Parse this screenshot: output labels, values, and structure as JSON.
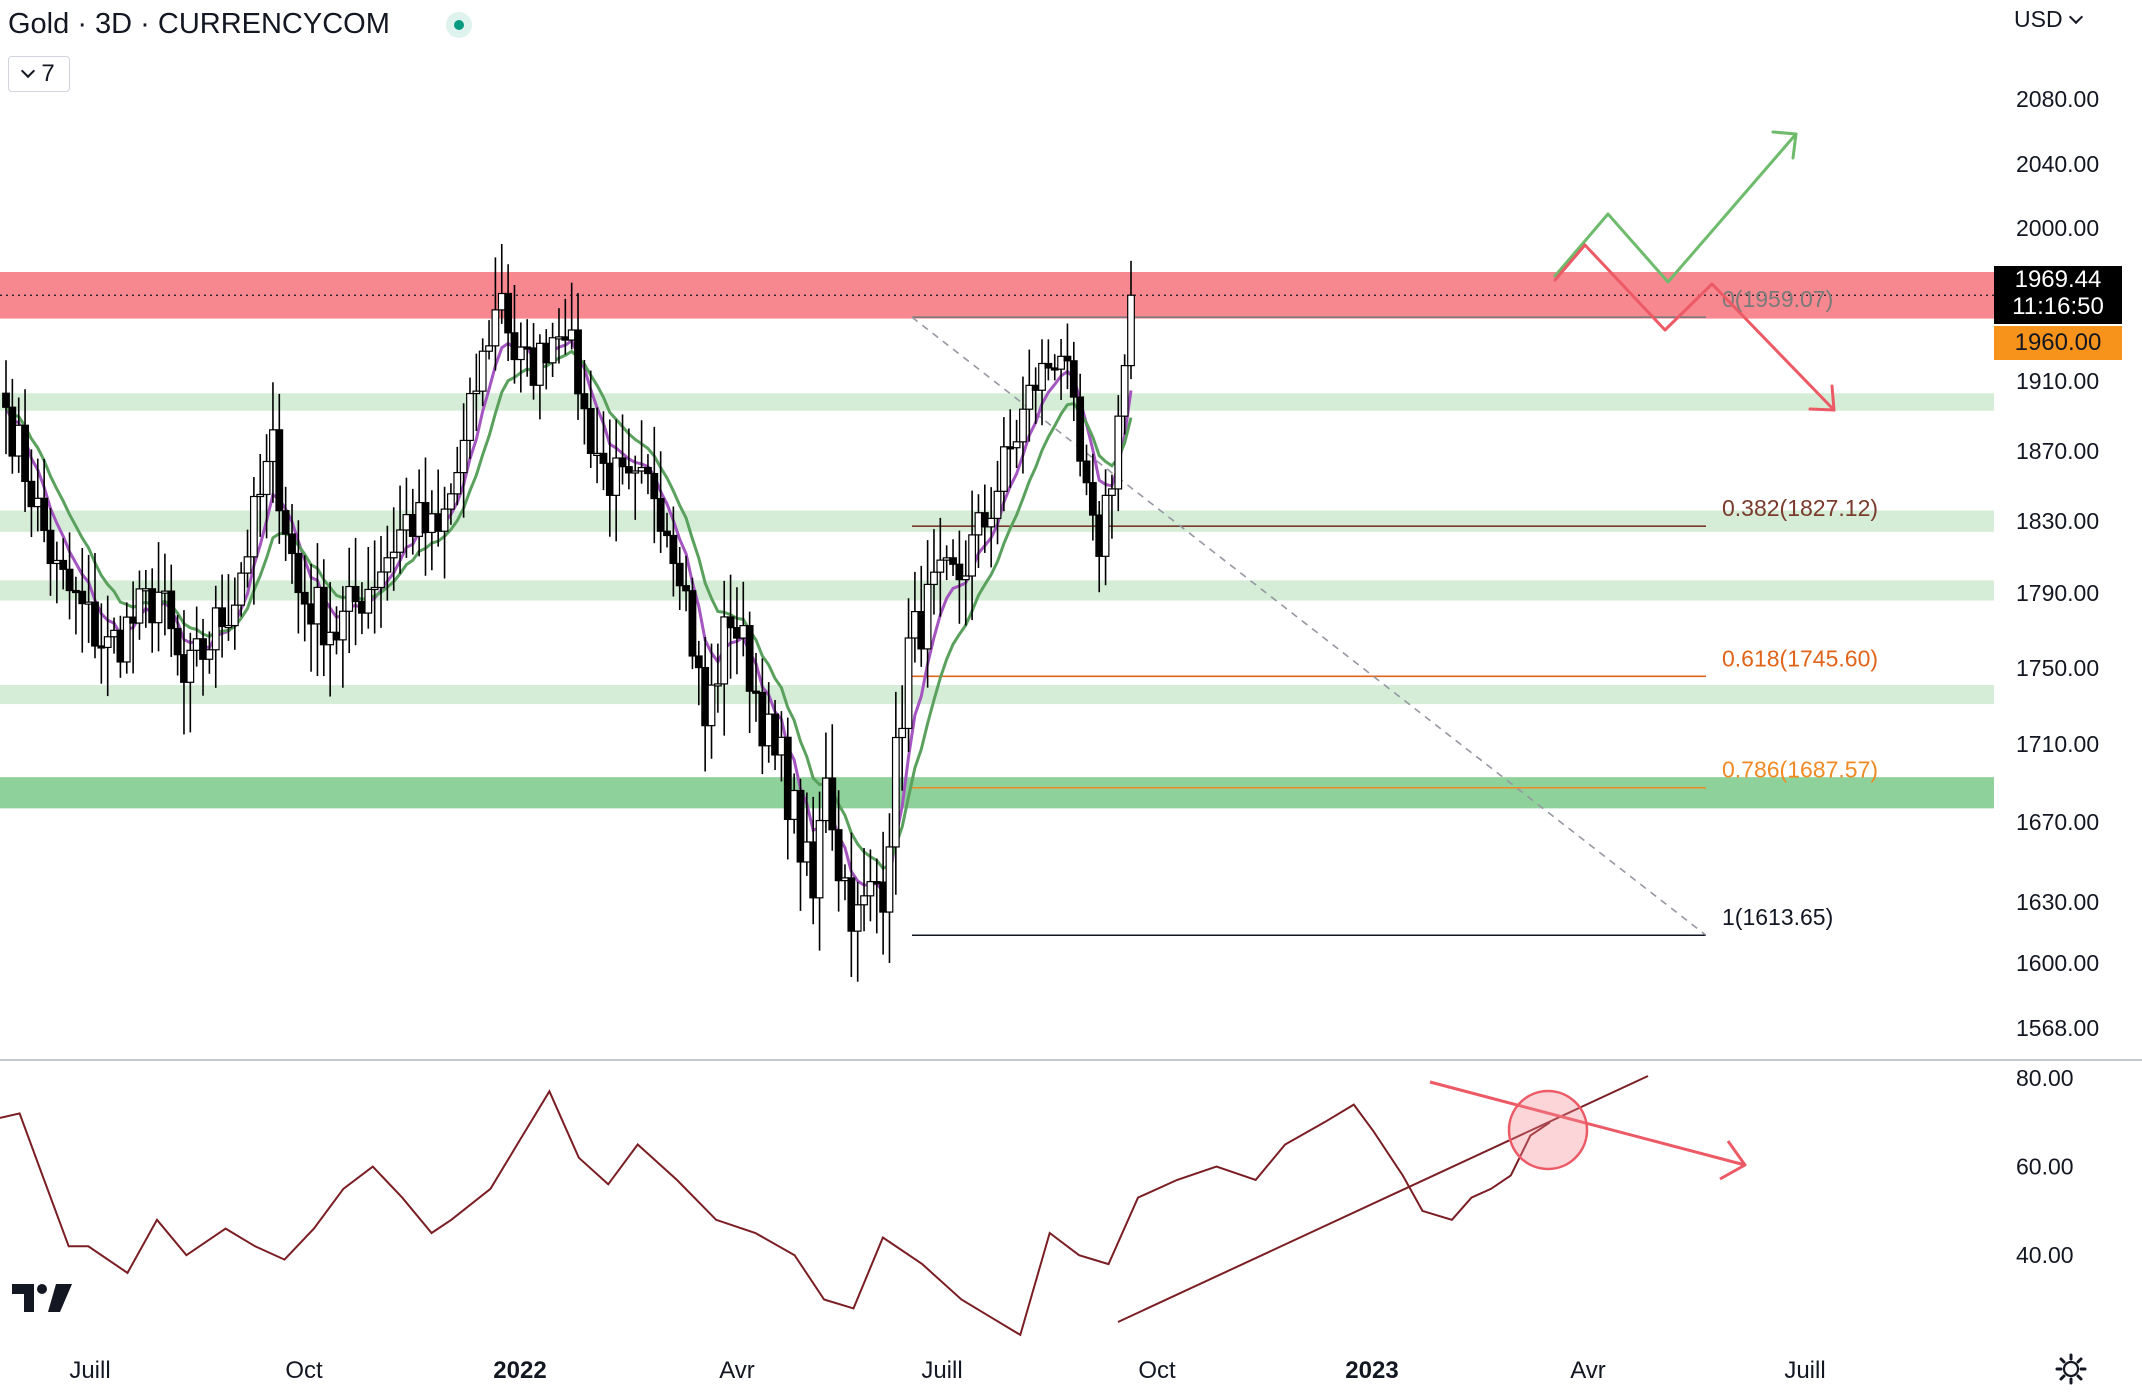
{
  "header": {
    "title": "Gold · 3D · CURRENCYCOM",
    "collapse_label": "7",
    "currency": "USD"
  },
  "price_axis": {
    "ticks": [
      "2080.00",
      "2040.00",
      "2000.00",
      "1910.00",
      "1870.00",
      "1830.00",
      "1790.00",
      "1750.00",
      "1710.00",
      "1670.00",
      "1630.00",
      "1600.00",
      "1568.00"
    ]
  },
  "price_tags": {
    "last_price": "1969.44",
    "countdown": "11:16:50",
    "level": "1960.00"
  },
  "rsi_axis": {
    "ticks": [
      "80.00",
      "60.00",
      "40.00"
    ]
  },
  "time_axis": {
    "labels": [
      {
        "text": "Juill",
        "bold": false
      },
      {
        "text": "Oct",
        "bold": false
      },
      {
        "text": "2022",
        "bold": true
      },
      {
        "text": "Avr",
        "bold": false
      },
      {
        "text": "Juill",
        "bold": false
      },
      {
        "text": "Oct",
        "bold": false
      },
      {
        "text": "2023",
        "bold": true
      },
      {
        "text": "Avr",
        "bold": false
      },
      {
        "text": "Juill",
        "bold": false
      }
    ]
  },
  "fib_labels": {
    "l0": "0(1959.07)",
    "l382": "0.382(1827.12)",
    "l618": "0.618(1745.60)",
    "l786": "0.786(1687.57)",
    "l1": "1(1613.65)"
  },
  "colors": {
    "up": "#ffffff",
    "down": "#000000",
    "wick": "#000000",
    "resistance_zone": "#f7888f",
    "support_zone": "#d5edd6",
    "support_strong": "#8fd19a",
    "ma_fast": "#a455c0",
    "ma_slow": "#5aa15e",
    "rsi": "#7a1e24",
    "bull_arrow": "#6dbb6b",
    "bear_arrow": "#ec5a66",
    "fib0": "#7a7a7a",
    "fib382": "#7a3a2c",
    "fib618": "#e0641a",
    "fib786": "#f08a24",
    "fib1": "#131722"
  },
  "chart_data": {
    "type": "candlestick",
    "timeframe": "3D",
    "x_ticks": [
      "Juill",
      "Oct",
      "2022",
      "Avr",
      "Juill",
      "Oct",
      "2023",
      "Avr",
      "Juill"
    ],
    "y_range": [
      1568,
      2120
    ],
    "rsi_range": [
      20,
      82
    ],
    "zones": [
      {
        "kind": "resistance",
        "from": 1958,
        "to": 1980
      },
      {
        "kind": "support",
        "from": 1893,
        "to": 1903
      },
      {
        "kind": "support",
        "from": 1824,
        "to": 1836
      },
      {
        "kind": "support",
        "from": 1786,
        "to": 1797
      },
      {
        "kind": "support",
        "from": 1731,
        "to": 1741
      },
      {
        "kind": "support_strong",
        "from": 1677,
        "to": 1693
      }
    ],
    "fibonacci": [
      {
        "level": "0",
        "price": 1959.07
      },
      {
        "level": "0.382",
        "price": 1827.12
      },
      {
        "level": "0.618",
        "price": 1745.6
      },
      {
        "level": "0.786",
        "price": 1687.57
      },
      {
        "level": "1",
        "price": 1613.65
      }
    ],
    "segments": [
      {
        "name": "2021-h2",
        "n": 64,
        "keys": [
          [
            0,
            1895
          ],
          [
            8,
            1800
          ],
          [
            16,
            1760
          ],
          [
            24,
            1790
          ],
          [
            28,
            1740
          ],
          [
            36,
            1790
          ],
          [
            42,
            1870
          ],
          [
            46,
            1790
          ],
          [
            52,
            1770
          ],
          [
            58,
            1800
          ],
          [
            63,
            1830
          ]
        ]
      },
      {
        "name": "2022-rally",
        "n": 24,
        "keys": [
          [
            0,
            1830
          ],
          [
            4,
            1820
          ],
          [
            8,
            1870
          ],
          [
            12,
            1945
          ],
          [
            14,
            1975
          ],
          [
            16,
            1930
          ],
          [
            19,
            1920
          ],
          [
            23,
            1955
          ]
        ]
      },
      {
        "name": "2022-drop",
        "n": 34,
        "keys": [
          [
            0,
            1955
          ],
          [
            3,
            1890
          ],
          [
            6,
            1860
          ],
          [
            10,
            1845
          ],
          [
            14,
            1850
          ],
          [
            18,
            1810
          ],
          [
            22,
            1720
          ],
          [
            26,
            1780
          ],
          [
            29,
            1750
          ],
          [
            33,
            1700
          ]
        ]
      },
      {
        "name": "2022-bottom",
        "n": 16,
        "keys": [
          [
            0,
            1700
          ],
          [
            3,
            1660
          ],
          [
            5,
            1630
          ],
          [
            7,
            1700
          ],
          [
            9,
            1650
          ],
          [
            12,
            1620
          ],
          [
            15,
            1640
          ]
        ]
      },
      {
        "name": "2023-recovery",
        "n": 34,
        "keys": [
          [
            0,
            1640
          ],
          [
            4,
            1760
          ],
          [
            8,
            1790
          ],
          [
            12,
            1800
          ],
          [
            16,
            1830
          ],
          [
            20,
            1870
          ],
          [
            24,
            1910
          ],
          [
            28,
            1935
          ],
          [
            31,
            1860
          ],
          [
            33,
            1820
          ]
        ]
      },
      {
        "name": "2023-breakout",
        "n": 6,
        "keys": [
          [
            0,
            1820
          ],
          [
            2,
            1860
          ],
          [
            4,
            1920
          ],
          [
            5,
            1969.44
          ]
        ]
      }
    ],
    "last_close": 1969.44,
    "rsi_points": [
      [
        0,
        71
      ],
      [
        4,
        72
      ],
      [
        8,
        60
      ],
      [
        14,
        42
      ],
      [
        18,
        42
      ],
      [
        26,
        36
      ],
      [
        32,
        48
      ],
      [
        38,
        40
      ],
      [
        46,
        46
      ],
      [
        52,
        42
      ],
      [
        58,
        39
      ],
      [
        64,
        46
      ],
      [
        70,
        55
      ],
      [
        76,
        60
      ],
      [
        82,
        53
      ],
      [
        88,
        45
      ],
      [
        92,
        48
      ],
      [
        100,
        55
      ],
      [
        106,
        66
      ],
      [
        112,
        77
      ],
      [
        118,
        62
      ],
      [
        124,
        56
      ],
      [
        130,
        65
      ],
      [
        138,
        57
      ],
      [
        146,
        48
      ],
      [
        154,
        45
      ],
      [
        162,
        40
      ],
      [
        168,
        30
      ],
      [
        174,
        28
      ],
      [
        180,
        44
      ],
      [
        188,
        38
      ],
      [
        196,
        30
      ],
      [
        202,
        26
      ],
      [
        208,
        22
      ],
      [
        214,
        45
      ],
      [
        220,
        40
      ],
      [
        226,
        38
      ],
      [
        232,
        53
      ],
      [
        240,
        57
      ],
      [
        248,
        60
      ],
      [
        256,
        57
      ],
      [
        262,
        65
      ],
      [
        270,
        70
      ],
      [
        276,
        74
      ],
      [
        280,
        68
      ],
      [
        286,
        58
      ],
      [
        290,
        50
      ],
      [
        296,
        48
      ],
      [
        300,
        53
      ],
      [
        304,
        55
      ],
      [
        308,
        58
      ],
      [
        312,
        67
      ],
      [
        316,
        70
      ]
    ]
  }
}
